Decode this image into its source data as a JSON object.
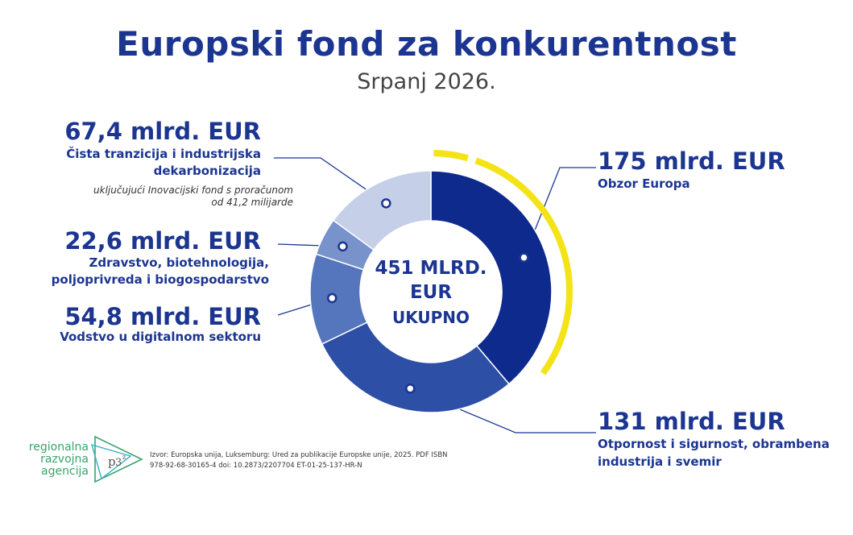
{
  "title": "Europski fond za konkurentnost",
  "subtitle": "Srpanj 2026.",
  "colors": {
    "title": "#1b3591",
    "accent_yellow": "#f3e317",
    "slices": [
      "#0e2a8c",
      "#2d4fa5",
      "#5575bd",
      "#7892cb",
      "#c5cfe8"
    ]
  },
  "chart_data": {
    "type": "pie",
    "center": {
      "line1": "451 MLRD.",
      "line2": "EUR",
      "line3": "UKUPNO"
    },
    "total": 451,
    "unit": "mlrd. EUR",
    "slices": [
      {
        "value": 175,
        "amount_label": "175 mlrd. EUR",
        "desc": "Obzor Europa"
      },
      {
        "value": 131,
        "amount_label": "131 mlrd. EUR",
        "desc": "Otpornost i sigurnost, obrambena industrija i svemir"
      },
      {
        "value": 54.8,
        "amount_label": "54,8 mlrd. EUR",
        "desc": "Vodstvo u digitalnom sektoru"
      },
      {
        "value": 22.6,
        "amount_label": "22,6 mlrd. EUR",
        "desc": "Zdravstvo, biotehnologija, poljoprivreda i biogospodarstvo"
      },
      {
        "value": 67.4,
        "amount_label": "67,4 mlrd. EUR",
        "desc": "Čista tranzicija i industrijska dekarbonizacija",
        "note": "uključujući Inovacijski fond s proračunom od 41,2 milijarde"
      }
    ]
  },
  "logo": {
    "line1": "regionalna",
    "line2": "razvojna",
    "line3": "agencija"
  },
  "source": {
    "line1": "Izvor: Europska unija, Luksemburg: Ured za publikacije Europske unije, 2025. PDF ISBN",
    "line2": "978-92-68-30165-4 doi: 10.2873/2207704 ET-01-25-137-HR-N"
  }
}
